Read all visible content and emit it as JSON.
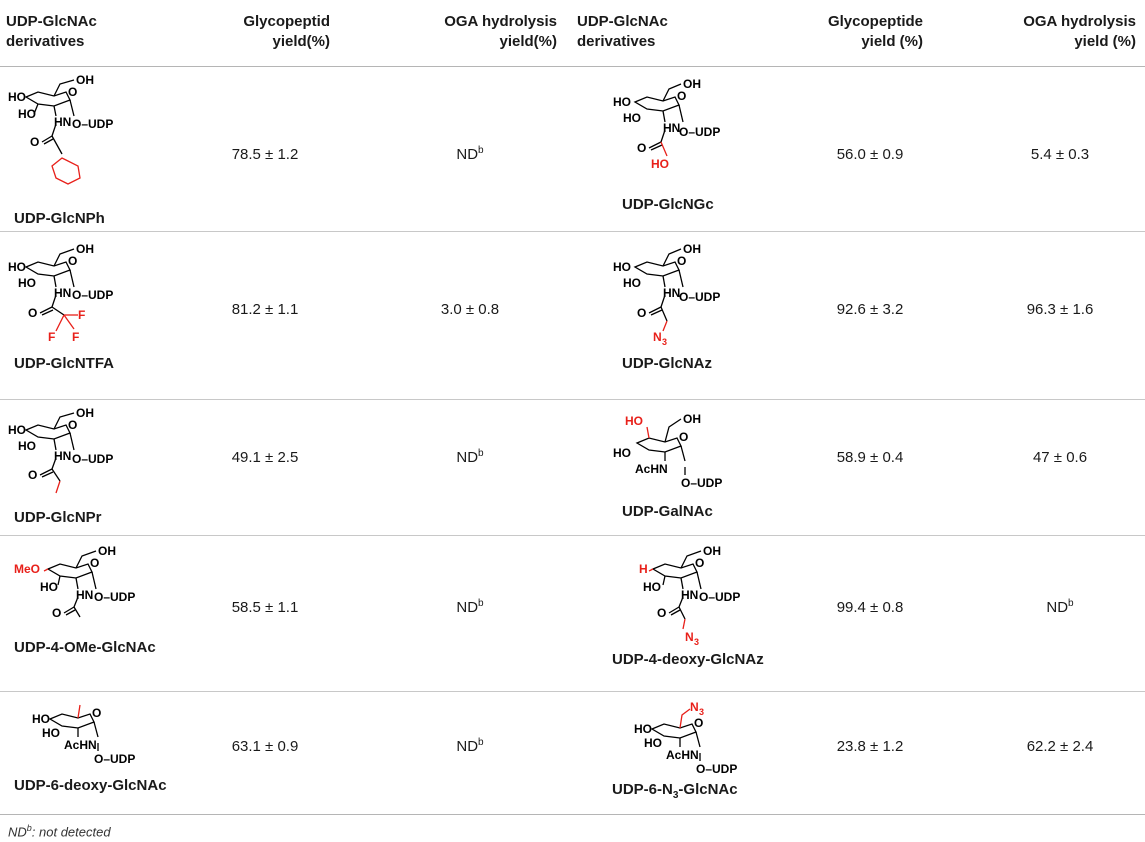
{
  "headers": {
    "col1": [
      "UDP-GlcNAc",
      "derivatives"
    ],
    "col2": [
      "Glycopeptid",
      "yield(%)"
    ],
    "col3": [
      "OGA hydrolysis",
      "yield(%)"
    ],
    "col4": [
      "UDP-GlcNAc",
      "derivatives"
    ],
    "col5": [
      "Glycopeptide",
      "yield (%)"
    ],
    "col6": [
      "OGA hydrolysis",
      "yield (%)"
    ]
  },
  "rows": [
    {
      "left_name": "UDP-GlcNPh",
      "left_yield": "78.5 ± 1.2",
      "left_oga": "ND",
      "left_oga_sup": "b",
      "right_name": "UDP-GlcNGc",
      "right_yield": "56.0 ± 0.9",
      "right_oga": "5.4 ± 0.3"
    },
    {
      "left_name": "UDP-GlcNTFA",
      "left_yield": "81.2 ± 1.1",
      "left_oga": "3.0 ± 0.8",
      "right_name": "UDP-GlcNAz",
      "right_yield": "92.6 ± 3.2",
      "right_oga": "96.3 ± 1.6"
    },
    {
      "left_name": "UDP-GlcNPr",
      "left_yield": "49.1 ± 2.5",
      "left_oga": "ND",
      "left_oga_sup": "b",
      "right_name": "UDP-GalNAc",
      "right_yield": "58.9 ± 0.4",
      "right_oga": "47 ± 0.6"
    },
    {
      "left_name": "UDP-4-OMe-GlcNAc",
      "left_yield": "58.5 ± 1.1",
      "left_oga": "ND",
      "left_oga_sup": "b",
      "right_name": "UDP-4-deoxy-GlcNAz",
      "right_yield": "99.4 ± 0.8",
      "right_oga": "ND",
      "right_oga_sup": "b"
    },
    {
      "left_name": "UDP-6-deoxy-GlcNAc",
      "left_yield": "63.1 ± 0.9",
      "left_oga": "ND",
      "left_oga_sup": "b",
      "right_name_pre": "UDP-6-N",
      "right_name_sub": "3",
      "right_name_post": "-GlcNAc",
      "right_yield": "23.8 ± 1.2",
      "right_oga": "62.2 ± 2.4"
    }
  ],
  "structure_labels": {
    "oh": "OH",
    "ho": "HO",
    "hn": "HN",
    "oudp": "O–UDP",
    "o": "O",
    "f": "F",
    "n3": "N",
    "n3_sub": "3",
    "acnh": "AcHN",
    "meo": "MeO",
    "h": "H"
  },
  "footnote": {
    "pre": "ND",
    "sup": "b",
    "post": ": not detected"
  },
  "colors": {
    "highlight": "#e8201a",
    "rule": "#b5b5b5"
  }
}
